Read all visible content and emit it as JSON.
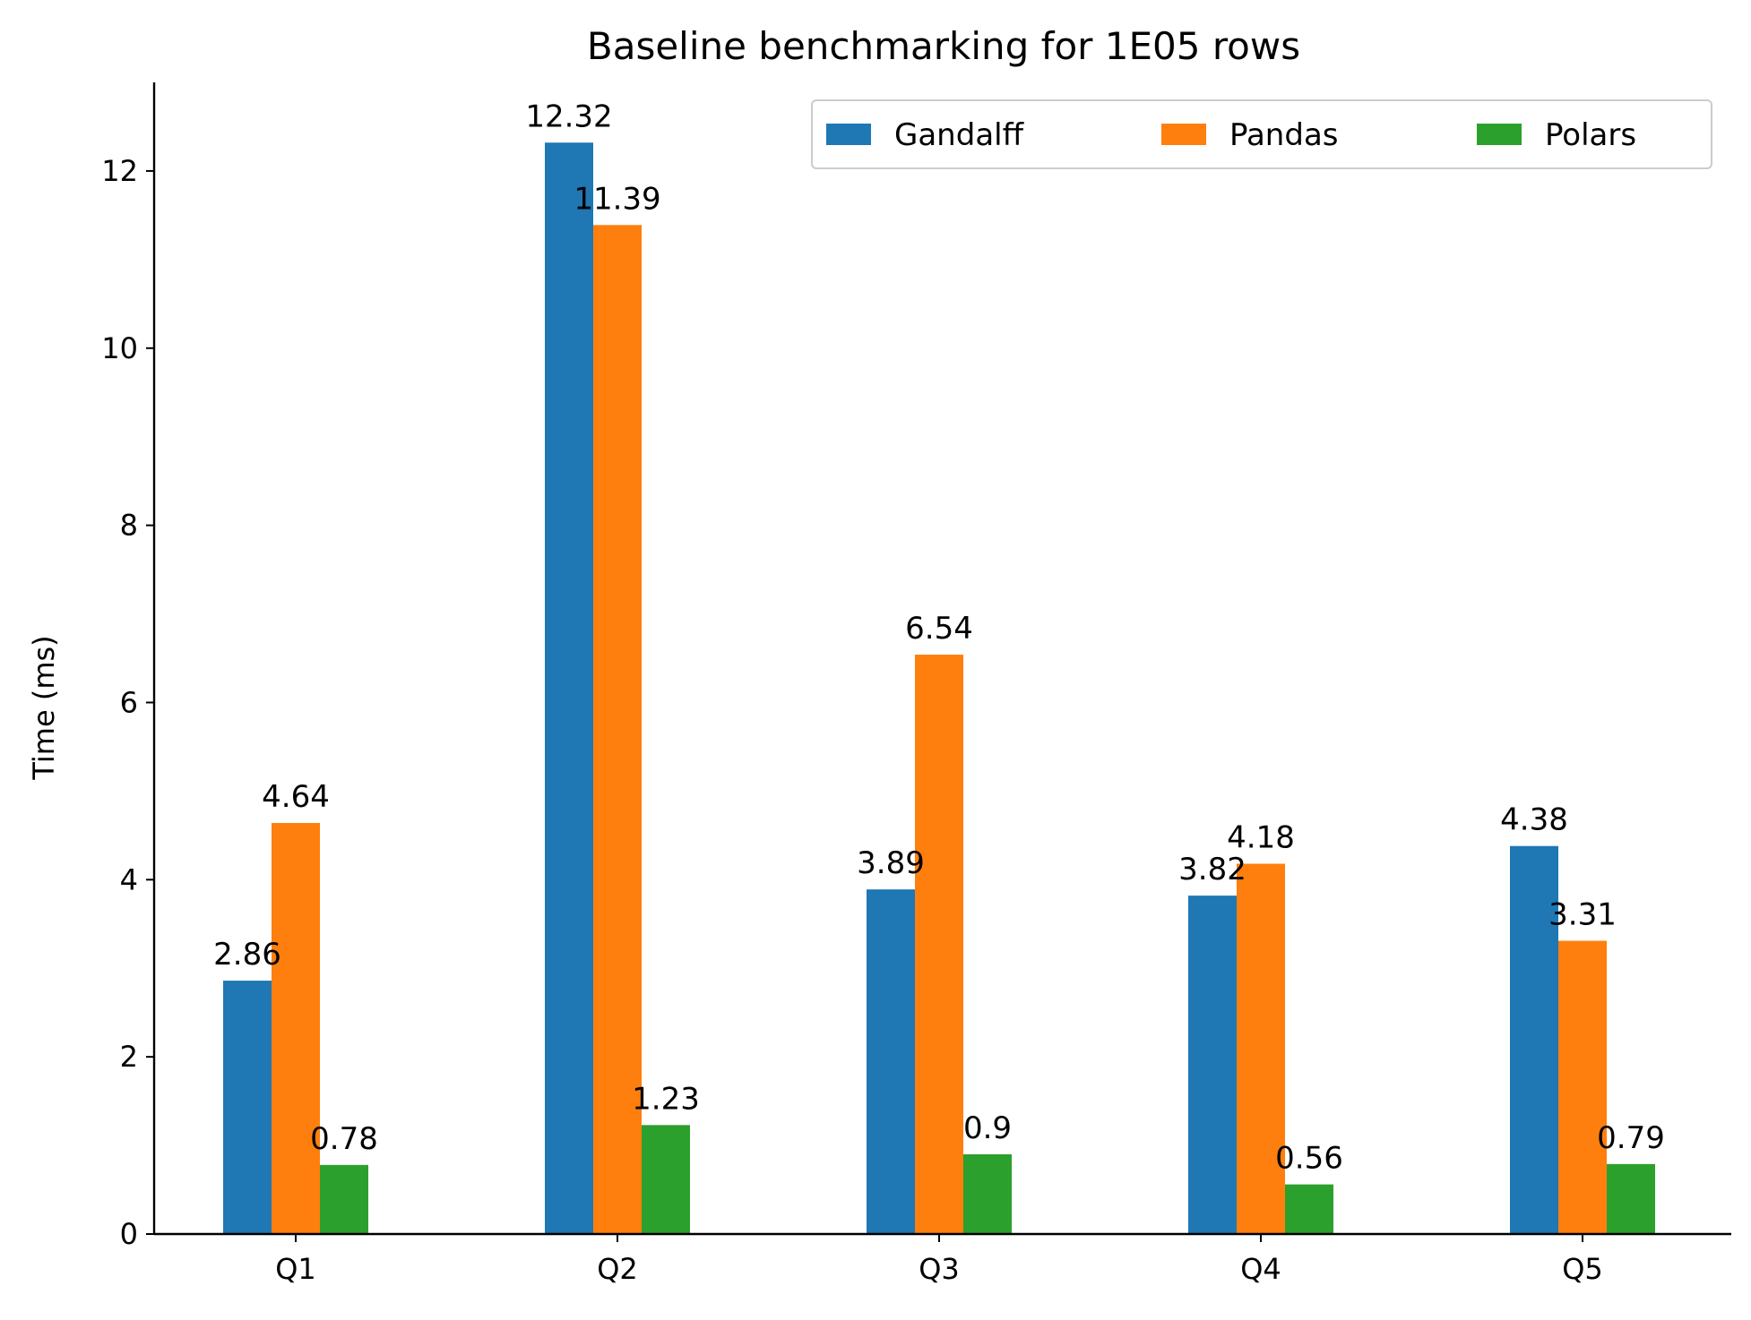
{
  "chart_data": {
    "type": "bar",
    "title": "Baseline benchmarking for 1E05 rows",
    "xlabel": "",
    "ylabel": "Time (ms)",
    "categories": [
      "Q1",
      "Q2",
      "Q3",
      "Q4",
      "Q5"
    ],
    "series": [
      {
        "name": "Gandalff",
        "color": "#1f77b4",
        "values": [
          2.86,
          12.32,
          3.89,
          3.82,
          4.38
        ]
      },
      {
        "name": "Pandas",
        "color": "#ff7f0e",
        "values": [
          4.64,
          11.39,
          6.54,
          4.18,
          3.31
        ]
      },
      {
        "name": "Polars",
        "color": "#2ca02c",
        "values": [
          0.78,
          1.23,
          0.9,
          0.56,
          0.79
        ]
      }
    ],
    "data_labels": [
      [
        "2.86",
        "12.32",
        "3.89",
        "3.82",
        "4.38"
      ],
      [
        "4.64",
        "11.39",
        "6.54",
        "4.18",
        "3.31"
      ],
      [
        "0.78",
        "1.23",
        "0.9",
        "0.56",
        "0.79"
      ]
    ],
    "ylim": [
      0,
      13
    ],
    "yticks": [
      0,
      2,
      4,
      6,
      8,
      10,
      12
    ],
    "grid": false,
    "legend_position": "top-right"
  }
}
